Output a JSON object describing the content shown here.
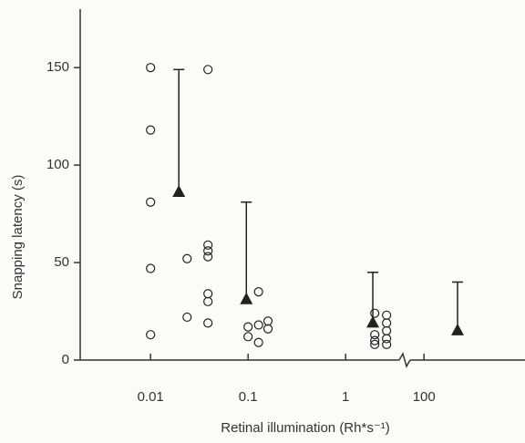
{
  "chart_data": {
    "type": "scatter",
    "xlabel": "Retinal illumination (Rh*s⁻¹)",
    "ylabel": "Snapping latency (s)",
    "xscale": "log",
    "x_segments": [
      {
        "xlim": [
          0.0019,
          3.7
        ],
        "xticks": [
          0.01,
          0.1,
          1
        ]
      },
      {
        "xlim": [
          69,
          1090
        ],
        "xticks": [
          100
        ]
      }
    ],
    "ylim": [
      0,
      180
    ],
    "yticks": [
      0,
      50,
      100,
      150
    ],
    "series": [
      {
        "marker": "circle",
        "color": "#222222",
        "x": [
          0.01,
          0.01,
          0.01,
          0.01,
          0.01,
          0.0237,
          0.0237,
          0.0388,
          0.0388,
          0.0388,
          0.0388,
          0.0388,
          0.0388,
          0.0388,
          0.1,
          0.1,
          0.128,
          0.128,
          0.128,
          0.16,
          0.16,
          1.99,
          1.99,
          1.99,
          1.99,
          2.63,
          2.63,
          2.63,
          2.63,
          2.63
        ],
        "values": [
          150,
          118,
          81,
          47,
          13,
          52,
          22,
          149,
          59,
          56,
          53,
          34,
          30,
          19,
          17,
          12,
          35,
          18,
          9,
          20,
          16,
          24,
          13,
          10,
          8,
          23,
          19,
          15,
          11,
          8
        ]
      },
      {
        "marker": "triangle",
        "color": "#222222",
        "x": [
          0.0195,
          0.096,
          1.9,
          221
        ],
        "values": [
          86,
          31,
          19,
          15
        ],
        "upper": [
          149,
          81,
          45,
          40
        ]
      }
    ]
  }
}
